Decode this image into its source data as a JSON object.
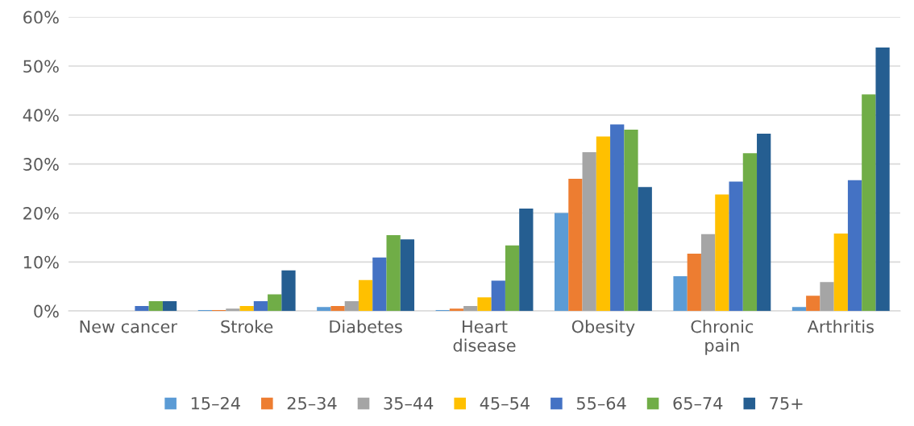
{
  "chart_data": {
    "type": "bar",
    "categories": [
      "New cancer",
      "Stroke",
      "Diabetes",
      "Heart\ndisease",
      "Obesity",
      "Chronic\npain",
      "Arthritis"
    ],
    "series": [
      {
        "name": "15–24",
        "color": "#5b9bd5",
        "values": [
          0,
          0.2,
          0.8,
          0.2,
          20.0,
          7.1,
          0.8
        ]
      },
      {
        "name": "25–34",
        "color": "#ed7d31",
        "values": [
          0,
          0.2,
          1.0,
          0.5,
          27.0,
          11.7,
          3.1
        ]
      },
      {
        "name": "35–44",
        "color": "#a5a5a5",
        "values": [
          0,
          0.5,
          2.0,
          1.0,
          32.4,
          15.7,
          5.9
        ]
      },
      {
        "name": "45–54",
        "color": "#ffc000",
        "values": [
          0,
          1.0,
          6.3,
          2.8,
          35.6,
          23.8,
          15.8
        ]
      },
      {
        "name": "55–64",
        "color": "#4472c4",
        "values": [
          1.0,
          2.0,
          10.9,
          6.2,
          38.1,
          26.4,
          26.7
        ]
      },
      {
        "name": "65–74",
        "color": "#70ad47",
        "values": [
          2.0,
          3.4,
          15.5,
          13.4,
          37.0,
          32.2,
          44.2
        ]
      },
      {
        "name": "75+",
        "color": "#255e91",
        "values": [
          2.0,
          8.3,
          14.6,
          20.9,
          25.3,
          36.2,
          53.8
        ]
      }
    ],
    "ylim": [
      0,
      60
    ],
    "yticks": [
      {
        "value": 0,
        "label": "0%"
      },
      {
        "value": 10,
        "label": "10%"
      },
      {
        "value": 20,
        "label": "20%"
      },
      {
        "value": 30,
        "label": "30%"
      },
      {
        "value": 40,
        "label": "40%"
      },
      {
        "value": 50,
        "label": "50%"
      },
      {
        "value": 60,
        "label": "60%"
      }
    ],
    "grid": "y",
    "legend": "bottom"
  }
}
